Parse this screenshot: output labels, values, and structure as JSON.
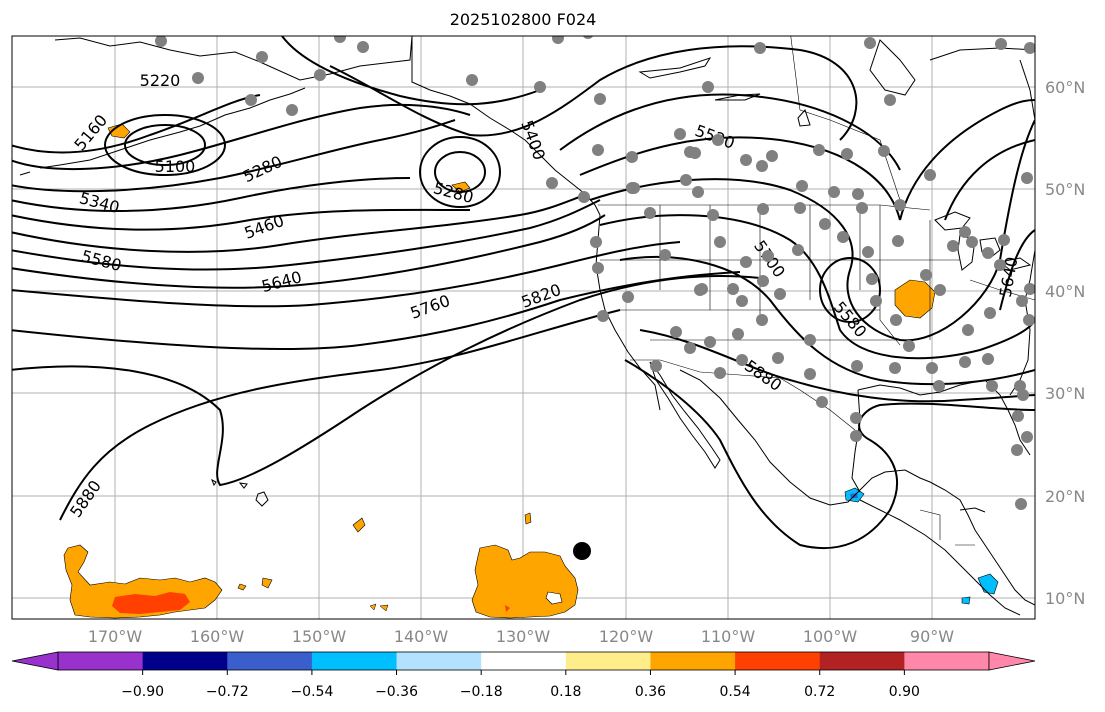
{
  "title": "2025102800 F024",
  "lon_labels": [
    "170°W",
    "160°W",
    "150°W",
    "140°W",
    "130°W",
    "120°W",
    "110°W",
    "100°W",
    "90°W"
  ],
  "lat_labels": [
    "60°N",
    "50°N",
    "40°N",
    "30°N",
    "20°N",
    "10°N"
  ],
  "contour_labels": [
    "5220",
    "5160",
    "5100",
    "5280",
    "5340",
    "5460",
    "5580",
    "5640",
    "5760",
    "5820",
    "5400",
    "5280",
    "5520",
    "5700",
    "5580",
    "5880",
    "5880",
    "5640"
  ],
  "colorbar": {
    "ticks": [
      "−0.90",
      "−0.72",
      "−0.54",
      "−0.36",
      "−0.18",
      "0.18",
      "0.36",
      "0.54",
      "0.72",
      "0.90"
    ],
    "colors": [
      "#9932cc",
      "#00008b",
      "#3a5fcd",
      "#00bfff",
      "#b2e2ff",
      "#ffffff",
      "#ffec8b",
      "#ffa500",
      "#ff4000",
      "#b22222",
      "#ff88aa"
    ]
  },
  "colors": {
    "contour": "#000000",
    "grid": "#b0b0b0",
    "station": "#808080",
    "marker": "#000000"
  }
}
